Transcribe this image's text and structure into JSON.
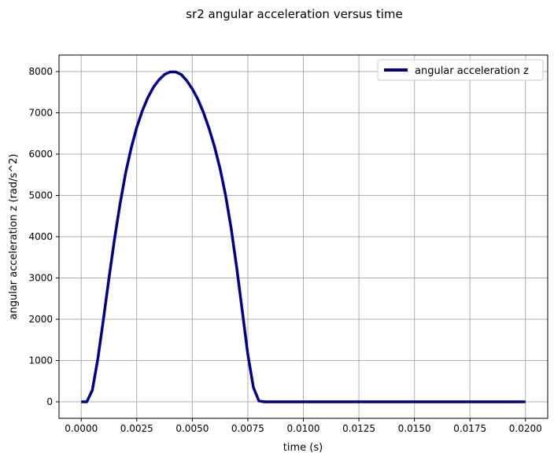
{
  "chart_data": {
    "type": "line",
    "title": "sr2 angular acceleration versus time",
    "xlabel": "time (s)",
    "ylabel": "angular acceleration z (rad/s^2)",
    "xlim": [
      -0.001,
      0.021
    ],
    "ylim": [
      -400,
      8400
    ],
    "grid": true,
    "legend_position": "top-right",
    "x_ticks": [
      0.0,
      0.0025,
      0.005,
      0.0075,
      0.01,
      0.0125,
      0.015,
      0.0175,
      0.02
    ],
    "x_tick_labels": [
      "0.0000",
      "0.0025",
      "0.0050",
      "0.0075",
      "0.0100",
      "0.0125",
      "0.0150",
      "0.0175",
      "0.0200"
    ],
    "y_ticks": [
      0,
      1000,
      2000,
      3000,
      4000,
      5000,
      6000,
      7000,
      8000
    ],
    "y_tick_labels": [
      "0",
      "1000",
      "2000",
      "3000",
      "4000",
      "5000",
      "6000",
      "7000",
      "8000"
    ],
    "series": [
      {
        "name": "angular acceleration z",
        "color": "#00008b",
        "x": [
          0.0,
          0.00025,
          0.0005,
          0.00075,
          0.001,
          0.00125,
          0.0015,
          0.00175,
          0.002,
          0.00225,
          0.0025,
          0.00275,
          0.003,
          0.00325,
          0.0035,
          0.00375,
          0.004,
          0.00425,
          0.0045,
          0.00475,
          0.005,
          0.00525,
          0.0055,
          0.00575,
          0.006,
          0.00625,
          0.0065,
          0.00675,
          0.007,
          0.00725,
          0.0075,
          0.00775,
          0.008,
          0.00825,
          0.0085,
          0.009,
          0.0095,
          0.01,
          0.011,
          0.012,
          0.013,
          0.014,
          0.015,
          0.016,
          0.017,
          0.018,
          0.019,
          0.02
        ],
        "y": [
          0,
          0,
          280,
          1050,
          2000,
          3000,
          3950,
          4800,
          5550,
          6150,
          6650,
          7050,
          7370,
          7620,
          7800,
          7930,
          7990,
          7990,
          7930,
          7780,
          7580,
          7330,
          7010,
          6630,
          6180,
          5650,
          5000,
          4200,
          3250,
          2200,
          1150,
          350,
          20,
          0,
          0,
          0,
          0,
          0,
          0,
          0,
          0,
          0,
          0,
          0,
          0,
          0,
          0,
          0
        ]
      }
    ]
  }
}
